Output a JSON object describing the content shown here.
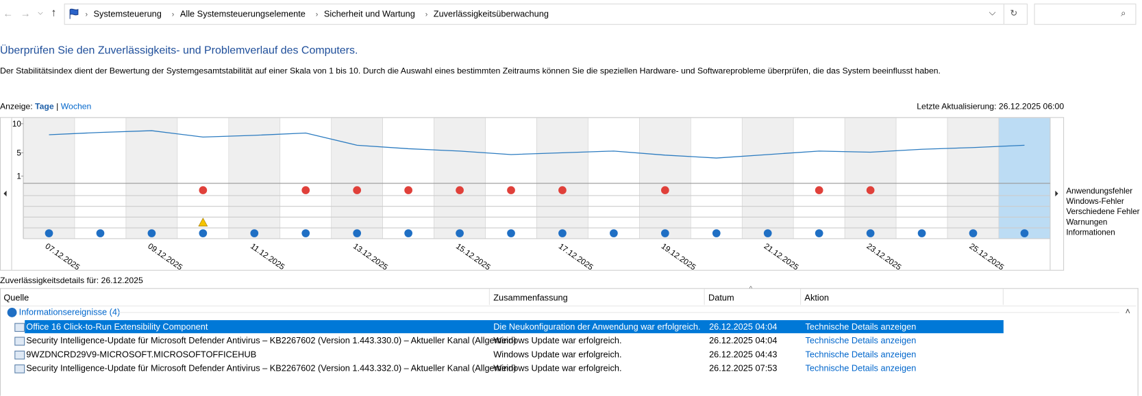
{
  "breadcrumb": [
    "Systemsteuerung",
    "Alle Systemsteuerungselemente",
    "Sicherheit und Wartung",
    "Zuverlässigkeitsüberwachung"
  ],
  "heading": "Überprüfen Sie den Zuverlässigkeits- und Problemverlauf des Computers.",
  "description": "Der Stabilitätsindex dient der Bewertung der Systemgesamtstabilität auf einer Skala von 1 bis 10. Durch die Auswahl eines bestimmten Zeitraums können Sie die speziellen Hardware- und Softwareprobleme überprüfen, die das System beeinflusst haben.",
  "view": {
    "label": "Anzeige:",
    "options": [
      "Tage",
      "|",
      "Wochen"
    ]
  },
  "last_update": "Letzte Aktualisierung: 26.12.2025 06:00",
  "chart_data": {
    "type": "line",
    "color": "#2b7bc0",
    "categories": [
      "07.12.2025",
      null,
      "09.12.2025",
      null,
      "11.12.2025",
      null,
      "13.12.2025",
      null,
      "15.12.2025",
      null,
      "17.12.2025",
      null,
      "19.12.2025",
      null,
      "21.12.2025",
      null,
      "23.12.2025",
      null,
      "25.12.2025",
      null
    ],
    "values": [
      8.1,
      8.5,
      8.8,
      7.7,
      8.0,
      8.4,
      6.3,
      5.7,
      5.3,
      4.7,
      5.0,
      5.3,
      4.6,
      4.1,
      4.7,
      5.3,
      5.1,
      5.6,
      5.9,
      6.3
    ],
    "ylim": [
      0,
      11
    ],
    "yticks": [
      1,
      5,
      10
    ],
    "selected": 19,
    "event_rows": [
      {
        "name": "Anwendungsfehler",
        "kind": "error",
        "days": [
          3,
          5,
          6,
          7,
          8,
          9,
          10,
          12,
          15,
          16
        ]
      },
      {
        "name": "Windows-Fehler",
        "kind": "error",
        "days": []
      },
      {
        "name": "Verschiedene Fehler",
        "kind": "error",
        "days": []
      },
      {
        "name": "Warnungen",
        "kind": "warning",
        "days": [
          3
        ]
      },
      {
        "name": "Informationen",
        "kind": "info",
        "days": [
          0,
          1,
          2,
          3,
          4,
          5,
          6,
          7,
          8,
          9,
          10,
          11,
          12,
          13,
          14,
          15,
          16,
          17,
          18,
          19
        ]
      }
    ]
  },
  "details": {
    "title": "Zuverlässigkeitsdetails für: 26.12.2025",
    "columns": [
      "Quelle",
      "Zusammenfassung",
      "Datum",
      "Aktion"
    ],
    "group": "Informationsereignisse (4)",
    "rows": [
      [
        "Office 16 Click-to-Run Extensibility Component",
        "Die Neukonfiguration der Anwendung war erfolgreich.",
        "26.12.2025 04:04",
        "Technische Details anzeigen"
      ],
      [
        "Security Intelligence-Update für Microsoft Defender Antivirus – KB2267602 (Version 1.443.330.0) – Aktueller Kanal (Allgemein)",
        "Windows Update war erfolgreich.",
        "26.12.2025 04:04",
        "Technische Details anzeigen"
      ],
      [
        "9WZDNCRD29V9-MICROSOFT.MICROSOFTOFFICEHUB",
        "Windows Update war erfolgreich.",
        "26.12.2025 04:43",
        "Technische Details anzeigen"
      ],
      [
        "Security Intelligence-Update für Microsoft Defender Antivirus – KB2267602 (Version 1.443.332.0) – Aktueller Kanal (Allgemein)",
        "Windows Update war erfolgreich.",
        "26.12.2025 07:53",
        "Technische Details anzeigen"
      ]
    ]
  }
}
